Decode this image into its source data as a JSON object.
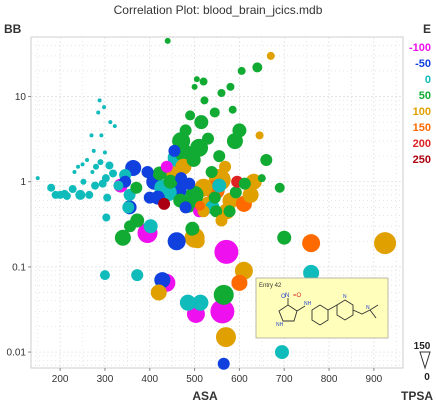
{
  "chart_data": {
    "type": "scatter",
    "title": "Correlation Plot: blood_brain_jcics.mdb",
    "xlabel": "ASA",
    "ylabel": "BB",
    "x_scale": "linear",
    "y_scale": "log",
    "xlim": [
      135,
      965
    ],
    "ylim": [
      0.0065,
      50
    ],
    "x_ticks": [
      "200",
      "300",
      "400",
      "500",
      "600",
      "700",
      "800",
      "900"
    ],
    "x_tick_values": [
      200,
      300,
      400,
      500,
      600,
      700,
      800,
      900
    ],
    "y_ticks": [
      "10",
      "1",
      "0.1",
      "0.01"
    ],
    "y_tick_values": [
      10,
      1,
      0.1,
      0.01
    ],
    "grid": true,
    "color_legend": {
      "title": "E",
      "labels": [
        "-100",
        "-50",
        "0",
        "50",
        "100",
        "150",
        "200",
        "250"
      ],
      "colors": [
        "#ee10ee",
        "#1040dd",
        "#10bbbb",
        "#11aa33",
        "#e0a000",
        "#ff6a00",
        "#dd2222",
        "#aa0011"
      ]
    },
    "size_legend": {
      "title": "TPSA",
      "labels": [
        "150",
        "0"
      ]
    },
    "tooltip": {
      "label": "Entry 42",
      "structure": "nitro-imidazole amine molecule drawing"
    },
    "series": [
      {
        "points": [
          {
            "x": 150,
            "y": 1.1,
            "s": 2,
            "c": "#10bbbb"
          },
          {
            "x": 180,
            "y": 0.85,
            "s": 4,
            "c": "#10bbbb"
          },
          {
            "x": 190,
            "y": 0.7,
            "s": 4,
            "c": "#10bbbb"
          },
          {
            "x": 200,
            "y": 0.7,
            "s": 4,
            "c": "#10bbbb"
          },
          {
            "x": 210,
            "y": 0.72,
            "s": 4,
            "c": "#10bbbb"
          },
          {
            "x": 215,
            "y": 0.68,
            "s": 4,
            "c": "#10bbbb"
          },
          {
            "x": 228,
            "y": 0.82,
            "s": 4,
            "c": "#10bbbb"
          },
          {
            "x": 232,
            "y": 1.3,
            "s": 2,
            "c": "#10bbbb"
          },
          {
            "x": 240,
            "y": 1.5,
            "s": 2,
            "c": "#10bbbb"
          },
          {
            "x": 245,
            "y": 0.7,
            "s": 5,
            "c": "#10bbbb"
          },
          {
            "x": 250,
            "y": 1.6,
            "s": 2,
            "c": "#10bbbb"
          },
          {
            "x": 252,
            "y": 1.0,
            "s": 3,
            "c": "#10bbbb"
          },
          {
            "x": 260,
            "y": 1.8,
            "s": 2,
            "c": "#10bbbb"
          },
          {
            "x": 265,
            "y": 0.7,
            "s": 4,
            "c": "#10bbbb"
          },
          {
            "x": 270,
            "y": 3.5,
            "s": 2,
            "c": "#10bbbb"
          },
          {
            "x": 272,
            "y": 1.3,
            "s": 2,
            "c": "#10bbbb"
          },
          {
            "x": 275,
            "y": 2.3,
            "s": 2,
            "c": "#10bbbb"
          },
          {
            "x": 278,
            "y": 0.9,
            "s": 4,
            "c": "#10bbbb"
          },
          {
            "x": 280,
            "y": 1.5,
            "s": 3,
            "c": "#10bbbb"
          },
          {
            "x": 285,
            "y": 6.5,
            "s": 2,
            "c": "#10bbbb"
          },
          {
            "x": 288,
            "y": 9.0,
            "s": 2,
            "c": "#10bbbb"
          },
          {
            "x": 290,
            "y": 1.7,
            "s": 3,
            "c": "#10bbbb"
          },
          {
            "x": 292,
            "y": 3.5,
            "s": 2,
            "c": "#10bbbb"
          },
          {
            "x": 295,
            "y": 0.95,
            "s": 4,
            "c": "#10bbbb"
          },
          {
            "x": 298,
            "y": 7.5,
            "s": 2,
            "c": "#10bbbb"
          },
          {
            "x": 300,
            "y": 2.2,
            "s": 2,
            "c": "#10bbbb"
          },
          {
            "x": 302,
            "y": 1.1,
            "s": 4,
            "c": "#10bbbb"
          },
          {
            "x": 305,
            "y": 0.65,
            "s": 4,
            "c": "#10bbbb"
          },
          {
            "x": 310,
            "y": 1.55,
            "s": 4,
            "c": "#10bbbb"
          },
          {
            "x": 312,
            "y": 5.0,
            "s": 2,
            "c": "#10bbbb"
          },
          {
            "x": 318,
            "y": 1.25,
            "s": 4,
            "c": "#10bbbb"
          },
          {
            "x": 322,
            "y": 4.5,
            "s": 2,
            "c": "#10bbbb"
          },
          {
            "x": 303,
            "y": 0.38,
            "s": 4,
            "c": "#10bbbb"
          },
          {
            "x": 300,
            "y": 0.08,
            "s": 5,
            "c": "#10bbbb"
          },
          {
            "x": 330,
            "y": 0.9,
            "s": 5,
            "c": "#10bbbb"
          },
          {
            "x": 345,
            "y": 1.2,
            "s": 6,
            "c": "#10bbbb"
          },
          {
            "x": 352,
            "y": 0.5,
            "s": 6,
            "c": "#10bbbb"
          },
          {
            "x": 356,
            "y": 0.3,
            "s": 6,
            "c": "#11aa33"
          },
          {
            "x": 372,
            "y": 0.35,
            "s": 7,
            "c": "#11aa33"
          },
          {
            "x": 335,
            "y": 0.9,
            "s": 7,
            "c": "#ee10ee"
          },
          {
            "x": 345,
            "y": 1.0,
            "s": 6,
            "c": "#1040dd"
          },
          {
            "x": 355,
            "y": 0.7,
            "s": 6,
            "c": "#10bbbb"
          },
          {
            "x": 363,
            "y": 1.45,
            "s": 8,
            "c": "#1040dd"
          },
          {
            "x": 355,
            "y": 0.5,
            "s": 7,
            "c": "#1040dd"
          },
          {
            "x": 370,
            "y": 0.85,
            "s": 6,
            "c": "#11aa33"
          },
          {
            "x": 372,
            "y": 0.08,
            "s": 6,
            "c": "#10bbbb"
          },
          {
            "x": 395,
            "y": 1.3,
            "s": 6,
            "c": "#1040dd"
          },
          {
            "x": 400,
            "y": 0.65,
            "s": 6,
            "c": "#1040dd"
          },
          {
            "x": 402,
            "y": 0.3,
            "s": 7,
            "c": "#10bbbb"
          },
          {
            "x": 410,
            "y": 1.0,
            "s": 8,
            "c": "#1040dd"
          },
          {
            "x": 418,
            "y": 0.65,
            "s": 7,
            "c": "#1040dd"
          },
          {
            "x": 422,
            "y": 1.25,
            "s": 7,
            "c": "#11aa33"
          },
          {
            "x": 428,
            "y": 0.85,
            "s": 8,
            "c": "#10bbbb"
          },
          {
            "x": 432,
            "y": 0.55,
            "s": 6,
            "c": "#aa0011"
          },
          {
            "x": 438,
            "y": 1.5,
            "s": 6,
            "c": "#ee10ee"
          },
          {
            "x": 440,
            "y": 0.75,
            "s": 9,
            "c": "#10bbbb"
          },
          {
            "x": 446,
            "y": 1.0,
            "s": 7,
            "c": "#11aa33"
          },
          {
            "x": 450,
            "y": 1.35,
            "s": 9,
            "c": "#e0a000"
          },
          {
            "x": 455,
            "y": 2.3,
            "s": 6,
            "c": "#1040dd"
          },
          {
            "x": 460,
            "y": 1.9,
            "s": 9,
            "c": "#10bbbb"
          },
          {
            "x": 470,
            "y": 1.1,
            "s": 6,
            "c": "#1040dd"
          },
          {
            "x": 468,
            "y": 0.6,
            "s": 7,
            "c": "#11aa33"
          },
          {
            "x": 475,
            "y": 1.5,
            "s": 8,
            "c": "#e0a000"
          },
          {
            "x": 480,
            "y": 0.5,
            "s": 6,
            "c": "#1040dd"
          },
          {
            "x": 488,
            "y": 0.95,
            "s": 6,
            "c": "#1040dd"
          },
          {
            "x": 495,
            "y": 0.28,
            "s": 7,
            "c": "#11aa33"
          },
          {
            "x": 505,
            "y": 0.65,
            "s": 6,
            "c": "#11aa33"
          },
          {
            "x": 510,
            "y": 0.45,
            "s": 6,
            "c": "#ee10ee"
          },
          {
            "x": 512,
            "y": 0.52,
            "s": 5,
            "c": "#ff6a00"
          },
          {
            "x": 520,
            "y": 0.45,
            "s": 6,
            "c": "#e0a000"
          },
          {
            "x": 528,
            "y": 0.55,
            "s": 7,
            "c": "#e0a000"
          },
          {
            "x": 540,
            "y": 0.5,
            "s": 7,
            "c": "#10bbbb"
          },
          {
            "x": 548,
            "y": 0.45,
            "s": 6,
            "c": "#11aa33"
          },
          {
            "x": 545,
            "y": 0.65,
            "s": 6,
            "c": "#11aa33"
          },
          {
            "x": 555,
            "y": 0.9,
            "s": 7,
            "c": "#10bbbb"
          },
          {
            "x": 560,
            "y": 0.35,
            "s": 6,
            "c": "#e0a000"
          },
          {
            "x": 572,
            "y": 0.45,
            "s": 8,
            "c": "#e0a000"
          },
          {
            "x": 580,
            "y": 0.6,
            "s": 8,
            "c": "#e0a000"
          },
          {
            "x": 578,
            "y": 0.45,
            "s": 6,
            "c": "#11aa33"
          },
          {
            "x": 592,
            "y": 0.75,
            "s": 6,
            "c": "#11aa33"
          },
          {
            "x": 610,
            "y": 0.55,
            "s": 8,
            "c": "#ff6a00"
          },
          {
            "x": 625,
            "y": 0.7,
            "s": 8,
            "c": "#e0a000"
          },
          {
            "x": 595,
            "y": 1.0,
            "s": 6,
            "c": "#dd2222"
          },
          {
            "x": 660,
            "y": 1.8,
            "s": 6,
            "c": "#11aa33"
          },
          {
            "x": 690,
            "y": 0.85,
            "s": 5,
            "c": "#11aa33"
          },
          {
            "x": 470,
            "y": 3.0,
            "s": 9,
            "c": "#11aa33"
          },
          {
            "x": 475,
            "y": 2.2,
            "s": 9,
            "c": "#11aa33"
          },
          {
            "x": 480,
            "y": 4.0,
            "s": 6,
            "c": "#11aa33"
          },
          {
            "x": 490,
            "y": 6.0,
            "s": 5,
            "c": "#11aa33"
          },
          {
            "x": 498,
            "y": 1.8,
            "s": 7,
            "c": "#11aa33"
          },
          {
            "x": 510,
            "y": 2.5,
            "s": 9,
            "c": "#11aa33"
          },
          {
            "x": 515,
            "y": 5.0,
            "s": 7,
            "c": "#11aa33"
          },
          {
            "x": 520,
            "y": 15,
            "s": 4,
            "c": "#11aa33"
          },
          {
            "x": 522,
            "y": 9.0,
            "s": 4,
            "c": "#11aa33"
          },
          {
            "x": 530,
            "y": 3.2,
            "s": 6,
            "c": "#11aa33"
          },
          {
            "x": 538,
            "y": 1.3,
            "s": 6,
            "c": "#11aa33"
          },
          {
            "x": 545,
            "y": 6.5,
            "s": 5,
            "c": "#11aa33"
          },
          {
            "x": 555,
            "y": 2.0,
            "s": 6,
            "c": "#11aa33"
          },
          {
            "x": 560,
            "y": 11,
            "s": 4,
            "c": "#11aa33"
          },
          {
            "x": 568,
            "y": 1.5,
            "s": 6,
            "c": "#e0a000"
          },
          {
            "x": 580,
            "y": 13,
            "s": 4,
            "c": "#11aa33"
          },
          {
            "x": 590,
            "y": 3.0,
            "s": 8,
            "c": "#11aa33"
          },
          {
            "x": 605,
            "y": 20,
            "s": 4,
            "c": "#11aa33"
          },
          {
            "x": 640,
            "y": 22,
            "s": 5,
            "c": "#11aa33"
          },
          {
            "x": 670,
            "y": 30,
            "s": 4,
            "c": "#e0a000"
          },
          {
            "x": 645,
            "y": 3.5,
            "s": 4,
            "c": "#e0a000"
          },
          {
            "x": 600,
            "y": 4.0,
            "s": 7,
            "c": "#11aa33"
          },
          {
            "x": 585,
            "y": 7.0,
            "s": 4,
            "c": "#11aa33"
          },
          {
            "x": 500,
            "y": 13,
            "s": 3,
            "c": "#11aa33"
          },
          {
            "x": 505,
            "y": 16,
            "s": 3,
            "c": "#11aa33"
          },
          {
            "x": 440,
            "y": 45,
            "s": 3,
            "c": "#11aa33"
          },
          {
            "x": 612,
            "y": 0.95,
            "s": 6,
            "c": "#11aa33"
          },
          {
            "x": 632,
            "y": 1.0,
            "s": 8,
            "c": "#e0a000"
          },
          {
            "x": 650,
            "y": 1.1,
            "s": 4,
            "c": "#11aa33"
          },
          {
            "x": 545,
            "y": 0.8,
            "s": 10,
            "c": "#ff6a00"
          },
          {
            "x": 556,
            "y": 1.05,
            "s": 11,
            "c": "#e0a000"
          },
          {
            "x": 520,
            "y": 0.85,
            "s": 9,
            "c": "#e0a000"
          },
          {
            "x": 500,
            "y": 0.7,
            "s": 9,
            "c": "#11aa33"
          },
          {
            "x": 485,
            "y": 0.55,
            "s": 9,
            "c": "#11aa33"
          },
          {
            "x": 340,
            "y": 0.22,
            "s": 8,
            "c": "#11aa33"
          },
          {
            "x": 395,
            "y": 0.25,
            "s": 10,
            "c": "#ee10ee"
          },
          {
            "x": 460,
            "y": 0.2,
            "s": 9,
            "c": "#1040dd"
          },
          {
            "x": 500,
            "y": 0.22,
            "s": 10,
            "c": "#e0a000"
          },
          {
            "x": 507,
            "y": 0.2,
            "s": 7,
            "c": "#e0a000"
          },
          {
            "x": 571,
            "y": 0.15,
            "s": 12,
            "c": "#ee10ee"
          },
          {
            "x": 700,
            "y": 0.22,
            "s": 7,
            "c": "#11aa33"
          },
          {
            "x": 760,
            "y": 0.19,
            "s": 9,
            "c": "#ff6a00"
          },
          {
            "x": 925,
            "y": 0.19,
            "s": 11,
            "c": "#e0a000"
          },
          {
            "x": 760,
            "y": 0.085,
            "s": 8,
            "c": "#10bbbb"
          },
          {
            "x": 610,
            "y": 0.09,
            "s": 9,
            "c": "#e0a000"
          },
          {
            "x": 600,
            "y": 0.065,
            "s": 8,
            "c": "#ff6a00"
          },
          {
            "x": 437,
            "y": 0.065,
            "s": 9,
            "c": "#ee10ee"
          },
          {
            "x": 428,
            "y": 0.07,
            "s": 8,
            "c": "#1040dd"
          },
          {
            "x": 420,
            "y": 0.05,
            "s": 8,
            "c": "#e0a000"
          },
          {
            "x": 485,
            "y": 0.038,
            "s": 8,
            "c": "#10bbbb"
          },
          {
            "x": 513,
            "y": 0.038,
            "s": 8,
            "c": "#10bbbb"
          },
          {
            "x": 565,
            "y": 0.047,
            "s": 10,
            "c": "#11aa33"
          },
          {
            "x": 503,
            "y": 0.028,
            "s": 9,
            "c": "#ee10ee"
          },
          {
            "x": 562,
            "y": 0.03,
            "s": 12,
            "c": "#ee10ee"
          },
          {
            "x": 570,
            "y": 0.015,
            "s": 10,
            "c": "#e0a000"
          },
          {
            "x": 565,
            "y": 0.0073,
            "s": 6,
            "c": "#1040dd"
          },
          {
            "x": 695,
            "y": 0.01,
            "s": 7,
            "c": "#10bbbb"
          },
          {
            "x": 460,
            "y": 0.8,
            "s": 10,
            "c": "#1040dd"
          }
        ]
      }
    ]
  }
}
